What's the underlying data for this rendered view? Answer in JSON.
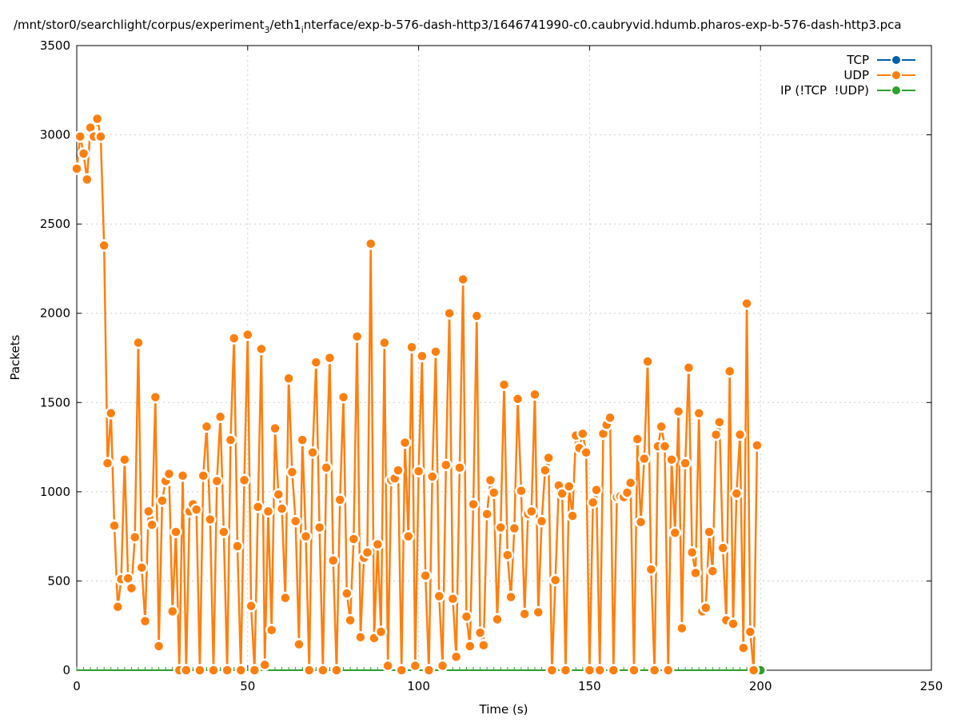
{
  "chart_data": {
    "type": "line",
    "title_parts": [
      "/mnt/stor0/searchlight/corpus/experiment",
      "3",
      "/eth1",
      "i",
      "nterface/exp-b-576-dash-http3/1646741990-c0.caubryvid.hdumb.pharos-exp-b-576-dash-http3.pca"
    ],
    "xlabel": "Time (s)",
    "ylabel": "Packets",
    "xlim": [
      0,
      250
    ],
    "ylim": [
      0,
      3500
    ],
    "xticks": [
      "0",
      "50",
      "100",
      "150",
      "200",
      "250"
    ],
    "yticks": [
      "0",
      "500",
      "1000",
      "1500",
      "2000",
      "2500",
      "3000",
      "3500"
    ],
    "grid": true,
    "legend_position": "top-right",
    "colors": {
      "TCP": "#0060ad",
      "UDP": "#ff7f0e",
      "IP": "#2ca02c"
    },
    "series": [
      {
        "name": "TCP",
        "values": []
      },
      {
        "name": "UDP",
        "x_start": 0,
        "x_step": 1,
        "values": [
          2810,
          2990,
          2895,
          2750,
          3040,
          2990,
          3090,
          2990,
          2380,
          1160,
          1440,
          810,
          355,
          510,
          1180,
          515,
          460,
          745,
          1835,
          575,
          275,
          890,
          815,
          1530,
          135,
          950,
          1060,
          1100,
          330,
          775,
          0,
          1090,
          0,
          890,
          930,
          900,
          0,
          1090,
          1365,
          845,
          0,
          1060,
          1420,
          775,
          0,
          1290,
          1860,
          695,
          0,
          1065,
          1880,
          360,
          0,
          915,
          1800,
          30,
          890,
          225,
          1355,
          985,
          905,
          405,
          1635,
          1110,
          835,
          145,
          1290,
          750,
          0,
          1220,
          1725,
          800,
          0,
          1135,
          1750,
          615,
          0,
          955,
          1530,
          430,
          280,
          735,
          1870,
          185,
          630,
          660,
          2390,
          180,
          705,
          215,
          1835,
          25,
          1065,
          1075,
          1120,
          0,
          1275,
          750,
          1810,
          25,
          1115,
          1760,
          530,
          0,
          1085,
          1785,
          415,
          25,
          1150,
          2000,
          400,
          75,
          1135,
          2190,
          300,
          135,
          930,
          1985,
          210,
          140,
          875,
          1065,
          995,
          285,
          800,
          1600,
          645,
          410,
          795,
          1520,
          1005,
          315,
          875,
          890,
          1545,
          325,
          835,
          1120,
          1190,
          0,
          505,
          1035,
          990,
          0,
          1030,
          865,
          1315,
          1245,
          1325,
          1220,
          0,
          940,
          1010,
          0,
          1325,
          1375,
          1415,
          0,
          970,
          975,
          970,
          995,
          1050,
          0,
          1295,
          830,
          1185,
          1730,
          565,
          0,
          1255,
          1365,
          1255,
          0,
          1180,
          770,
          1450,
          235,
          1160,
          1695,
          660,
          545,
          1440,
          330,
          350,
          775,
          555,
          1320,
          1390,
          685,
          280,
          1675,
          260,
          990,
          1320,
          125,
          2055,
          215,
          0,
          1260
        ]
      },
      {
        "name": "IP (!TCP  !UDP)",
        "x_start": 0,
        "x_step": 1,
        "values_constant": 0,
        "count": 201,
        "marker_at": [
          200,
          0
        ]
      }
    ],
    "legend": [
      "TCP",
      "UDP",
      "IP (!TCP  !UDP)"
    ]
  }
}
